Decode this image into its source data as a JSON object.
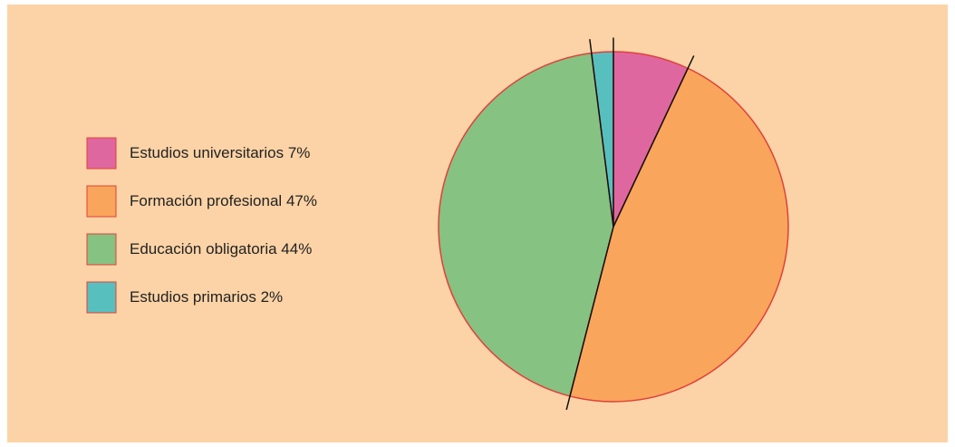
{
  "chart_data": {
    "type": "pie",
    "categories": [
      "Estudios universitarios",
      "Formación profesional",
      "Educación obligatoria",
      "Estudios primarios"
    ],
    "values": [
      7,
      47,
      44,
      2
    ],
    "value_labels": [
      "7%",
      "47%",
      "44%",
      "2%"
    ],
    "colors": [
      "#df67a0",
      "#f9a65c",
      "#86c282",
      "#58bfbf"
    ],
    "legend": "left"
  }
}
